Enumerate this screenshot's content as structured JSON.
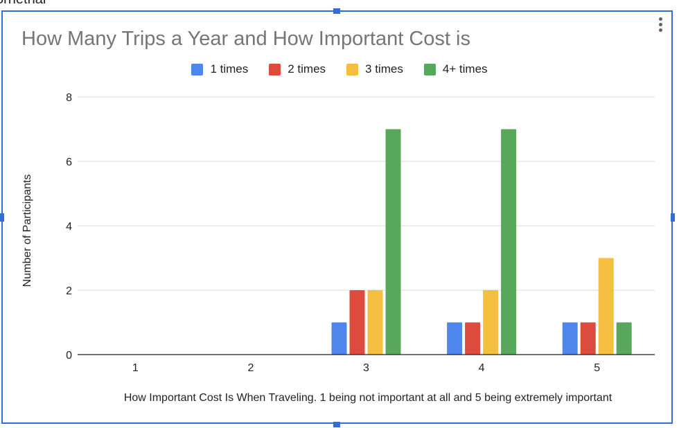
{
  "clipped_top_text": "ornethal",
  "chart_data": {
    "type": "bar",
    "title": "How Many Trips a Year and How Important Cost is",
    "xlabel": "How Important Cost Is When Traveling. 1 being not important at all and 5 being extremely important",
    "ylabel": "Number of Participants",
    "categories": [
      "1",
      "2",
      "3",
      "4",
      "5"
    ],
    "ylim": [
      0,
      8
    ],
    "yticks": [
      "0",
      "2",
      "4",
      "6",
      "8"
    ],
    "grid": true,
    "legend_position": "top",
    "series": [
      {
        "name": "1 times",
        "color": "#4f86ec",
        "values": [
          0,
          0,
          1,
          1,
          1
        ]
      },
      {
        "name": "2 times",
        "color": "#dd4b3e",
        "values": [
          0,
          0,
          2,
          1,
          1
        ]
      },
      {
        "name": "3 times",
        "color": "#f4bf40",
        "values": [
          0,
          0,
          2,
          2,
          3
        ]
      },
      {
        "name": "4+ times",
        "color": "#58a75a",
        "values": [
          0,
          0,
          7,
          7,
          1
        ]
      }
    ]
  },
  "menu_icon": "more-vert-icon"
}
